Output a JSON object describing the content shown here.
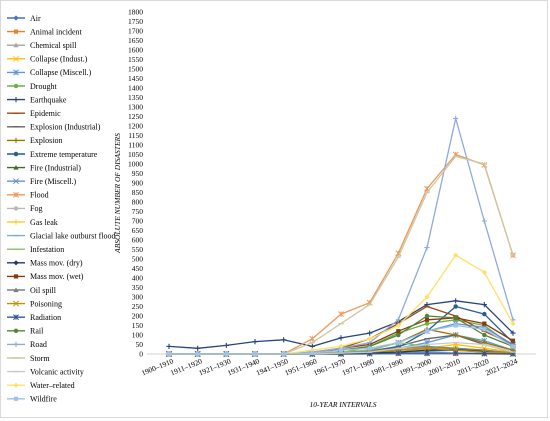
{
  "chart_data": {
    "type": "line",
    "title": "",
    "xlabel": "10-YEAR INTERVALS",
    "ylabel": "ABSOLUTE NUMBER OF DISASTERS",
    "ylim": [
      0,
      1800
    ],
    "ytick_step": 50,
    "grid": false,
    "legend_position": "left",
    "categories": [
      "1900–1910",
      "1911–1920",
      "1921–1930",
      "1931–1940",
      "1941–1950",
      "1951–1960",
      "1961–1970",
      "1971–1980",
      "1981–1990",
      "1991–2000",
      "2001–2010",
      "2011–2020",
      "2021–2024"
    ],
    "series": [
      {
        "name": "Air",
        "color": "#4472c4",
        "marker": "diamond",
        "values": [
          0,
          0,
          0,
          0,
          0,
          0,
          0,
          5,
          10,
          15,
          20,
          12,
          5
        ]
      },
      {
        "name": "Animal incident",
        "color": "#ed7d31",
        "marker": "square",
        "values": [
          0,
          0,
          0,
          0,
          0,
          0,
          0,
          0,
          0,
          0,
          0,
          0,
          0
        ]
      },
      {
        "name": "Chemical spill",
        "color": "#a5a5a5",
        "marker": "triangle",
        "values": [
          0,
          0,
          0,
          0,
          0,
          0,
          2,
          5,
          20,
          35,
          30,
          20,
          5
        ]
      },
      {
        "name": "Collapse (Indust.)",
        "color": "#ffc000",
        "marker": "x",
        "values": [
          0,
          0,
          0,
          0,
          0,
          0,
          0,
          2,
          10,
          30,
          50,
          30,
          10
        ]
      },
      {
        "name": "Collapse (Miscell.)",
        "color": "#5b9bd5",
        "marker": "star",
        "values": [
          0,
          0,
          0,
          0,
          0,
          0,
          2,
          10,
          30,
          60,
          100,
          70,
          20
        ]
      },
      {
        "name": "Drought",
        "color": "#70ad47",
        "marker": "circle",
        "values": [
          0,
          0,
          0,
          0,
          0,
          0,
          5,
          40,
          110,
          160,
          180,
          150,
          40
        ]
      },
      {
        "name": "Earthquake",
        "color": "#264478",
        "marker": "plus",
        "values": [
          40,
          30,
          45,
          65,
          75,
          40,
          85,
          110,
          170,
          260,
          280,
          260,
          110
        ]
      },
      {
        "name": "Epidemic",
        "color": "#9e480e",
        "marker": "dash",
        "values": [
          0,
          0,
          0,
          0,
          0,
          0,
          30,
          80,
          160,
          250,
          200,
          120,
          50
        ]
      },
      {
        "name": "Explosion (Industrial)",
        "color": "#636363",
        "marker": "dash",
        "values": [
          0,
          0,
          0,
          0,
          0,
          0,
          5,
          15,
          40,
          80,
          100,
          50,
          10
        ]
      },
      {
        "name": "Explosion",
        "color": "#997300",
        "marker": "plus",
        "values": [
          0,
          0,
          0,
          0,
          0,
          0,
          5,
          20,
          60,
          130,
          100,
          60,
          20
        ]
      },
      {
        "name": "Extreme temperature",
        "color": "#255e91",
        "marker": "circle",
        "values": [
          0,
          0,
          0,
          0,
          0,
          0,
          10,
          15,
          35,
          120,
          250,
          210,
          60
        ]
      },
      {
        "name": "Fire (Industrial)",
        "color": "#43682b",
        "marker": "triangle",
        "values": [
          0,
          0,
          0,
          0,
          0,
          0,
          2,
          10,
          20,
          30,
          30,
          15,
          5
        ]
      },
      {
        "name": "Fire (Miscell.)",
        "color": "#698ed0",
        "marker": "x",
        "values": [
          0,
          0,
          0,
          0,
          0,
          0,
          5,
          20,
          60,
          120,
          160,
          140,
          50
        ]
      },
      {
        "name": "Flood",
        "color": "#f1975a",
        "marker": "star",
        "values": [
          0,
          0,
          0,
          0,
          0,
          80,
          210,
          270,
          530,
          870,
          1050,
          995,
          520
        ]
      },
      {
        "name": "Fog",
        "color": "#b7b7b7",
        "marker": "circle",
        "values": [
          0,
          0,
          0,
          0,
          0,
          0,
          0,
          0,
          5,
          10,
          5,
          5,
          0
        ]
      },
      {
        "name": "Gas leak",
        "color": "#ffcd33",
        "marker": "plus",
        "values": [
          0,
          0,
          0,
          0,
          0,
          0,
          0,
          2,
          10,
          20,
          30,
          20,
          5
        ]
      },
      {
        "name": "Glacial lake outburst flood",
        "color": "#7cafdd",
        "marker": "dash",
        "values": [
          0,
          0,
          0,
          0,
          0,
          0,
          0,
          0,
          0,
          0,
          2,
          2,
          0
        ]
      },
      {
        "name": "Infestation",
        "color": "#8cc168",
        "marker": "dash",
        "values": [
          0,
          0,
          0,
          0,
          0,
          0,
          10,
          20,
          60,
          40,
          20,
          10,
          0
        ]
      },
      {
        "name": "Mass mov. (dry)",
        "color": "#203864",
        "marker": "diamond",
        "values": [
          0,
          0,
          0,
          0,
          0,
          0,
          2,
          5,
          10,
          20,
          25,
          15,
          5
        ]
      },
      {
        "name": "Mass mov. (wet)",
        "color": "#843c0c",
        "marker": "square",
        "values": [
          0,
          0,
          0,
          0,
          0,
          10,
          30,
          50,
          120,
          180,
          190,
          160,
          70
        ]
      },
      {
        "name": "Oil spill",
        "color": "#7f7f7f",
        "marker": "triangle",
        "values": [
          0,
          0,
          0,
          0,
          0,
          0,
          5,
          15,
          30,
          40,
          30,
          20,
          5
        ]
      },
      {
        "name": "Poisoning",
        "color": "#bf9000",
        "marker": "x",
        "values": [
          0,
          0,
          0,
          0,
          0,
          0,
          5,
          10,
          20,
          30,
          20,
          10,
          5
        ]
      },
      {
        "name": "Radiation",
        "color": "#2f5597",
        "marker": "star",
        "values": [
          0,
          0,
          0,
          0,
          0,
          0,
          0,
          2,
          5,
          5,
          5,
          2,
          0
        ]
      },
      {
        "name": "Rail",
        "color": "#548235",
        "marker": "circle",
        "values": [
          0,
          0,
          0,
          0,
          0,
          5,
          20,
          40,
          100,
          200,
          190,
          100,
          40
        ]
      },
      {
        "name": "Road",
        "color": "#8faadc",
        "marker": "plus",
        "values": [
          0,
          0,
          0,
          0,
          0,
          10,
          30,
          60,
          180,
          560,
          1240,
          700,
          180
        ]
      },
      {
        "name": "Storm",
        "color": "#c9c9a3",
        "marker": "dash",
        "values": [
          0,
          0,
          0,
          0,
          0,
          60,
          160,
          260,
          510,
          850,
          1040,
          1000,
          520
        ]
      },
      {
        "name": "Volcanic activity",
        "color": "#c9c9c9",
        "marker": "dash",
        "values": [
          0,
          0,
          0,
          0,
          0,
          0,
          5,
          10,
          30,
          50,
          60,
          50,
          10
        ]
      },
      {
        "name": "Water–related",
        "color": "#ffe066",
        "marker": "diamond",
        "values": [
          0,
          0,
          0,
          0,
          0,
          20,
          40,
          80,
          150,
          300,
          520,
          430,
          160
        ]
      },
      {
        "name": "Wildfire",
        "color": "#9dc3e6",
        "marker": "square",
        "values": [
          0,
          0,
          0,
          0,
          0,
          5,
          20,
          30,
          60,
          120,
          150,
          130,
          40
        ]
      }
    ]
  }
}
